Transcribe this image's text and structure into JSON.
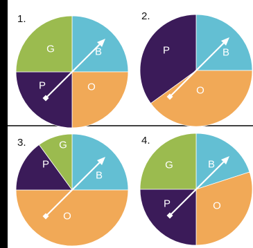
{
  "colors": {
    "G": "#9bbb4f",
    "B": "#63bfd3",
    "O": "#f1a957",
    "P": "#3b1b59",
    "arrow": "#ffffff",
    "border": "#000000"
  },
  "panels": [
    {
      "number": "1.",
      "slices": [
        {
          "key": "B",
          "label": "B",
          "fraction": 0.25
        },
        {
          "key": "O",
          "label": "O",
          "fraction": 0.25
        },
        {
          "key": "P",
          "label": "P",
          "fraction": 0.25
        },
        {
          "key": "G",
          "label": "G",
          "fraction": 0.25
        }
      ]
    },
    {
      "number": "2.",
      "slices": [
        {
          "key": "B",
          "label": "B",
          "fraction": 0.25
        },
        {
          "key": "O",
          "label": "O",
          "fraction": 0.4
        },
        {
          "key": "P",
          "label": "P",
          "fraction": 0.35
        }
      ]
    },
    {
      "number": "3.",
      "slices": [
        {
          "key": "B",
          "label": "B",
          "fraction": 0.25
        },
        {
          "key": "O",
          "label": "O",
          "fraction": 0.5
        },
        {
          "key": "P",
          "label": "P",
          "fraction": 0.15
        },
        {
          "key": "G",
          "label": "G",
          "fraction": 0.1
        }
      ]
    },
    {
      "number": "4.",
      "slices": [
        {
          "key": "B",
          "label": "B",
          "fraction": 0.2
        },
        {
          "key": "O",
          "label": "O",
          "fraction": 0.3
        },
        {
          "key": "P",
          "label": "P",
          "fraction": 0.25
        },
        {
          "key": "G",
          "label": "G",
          "fraction": 0.25
        }
      ]
    }
  ]
}
